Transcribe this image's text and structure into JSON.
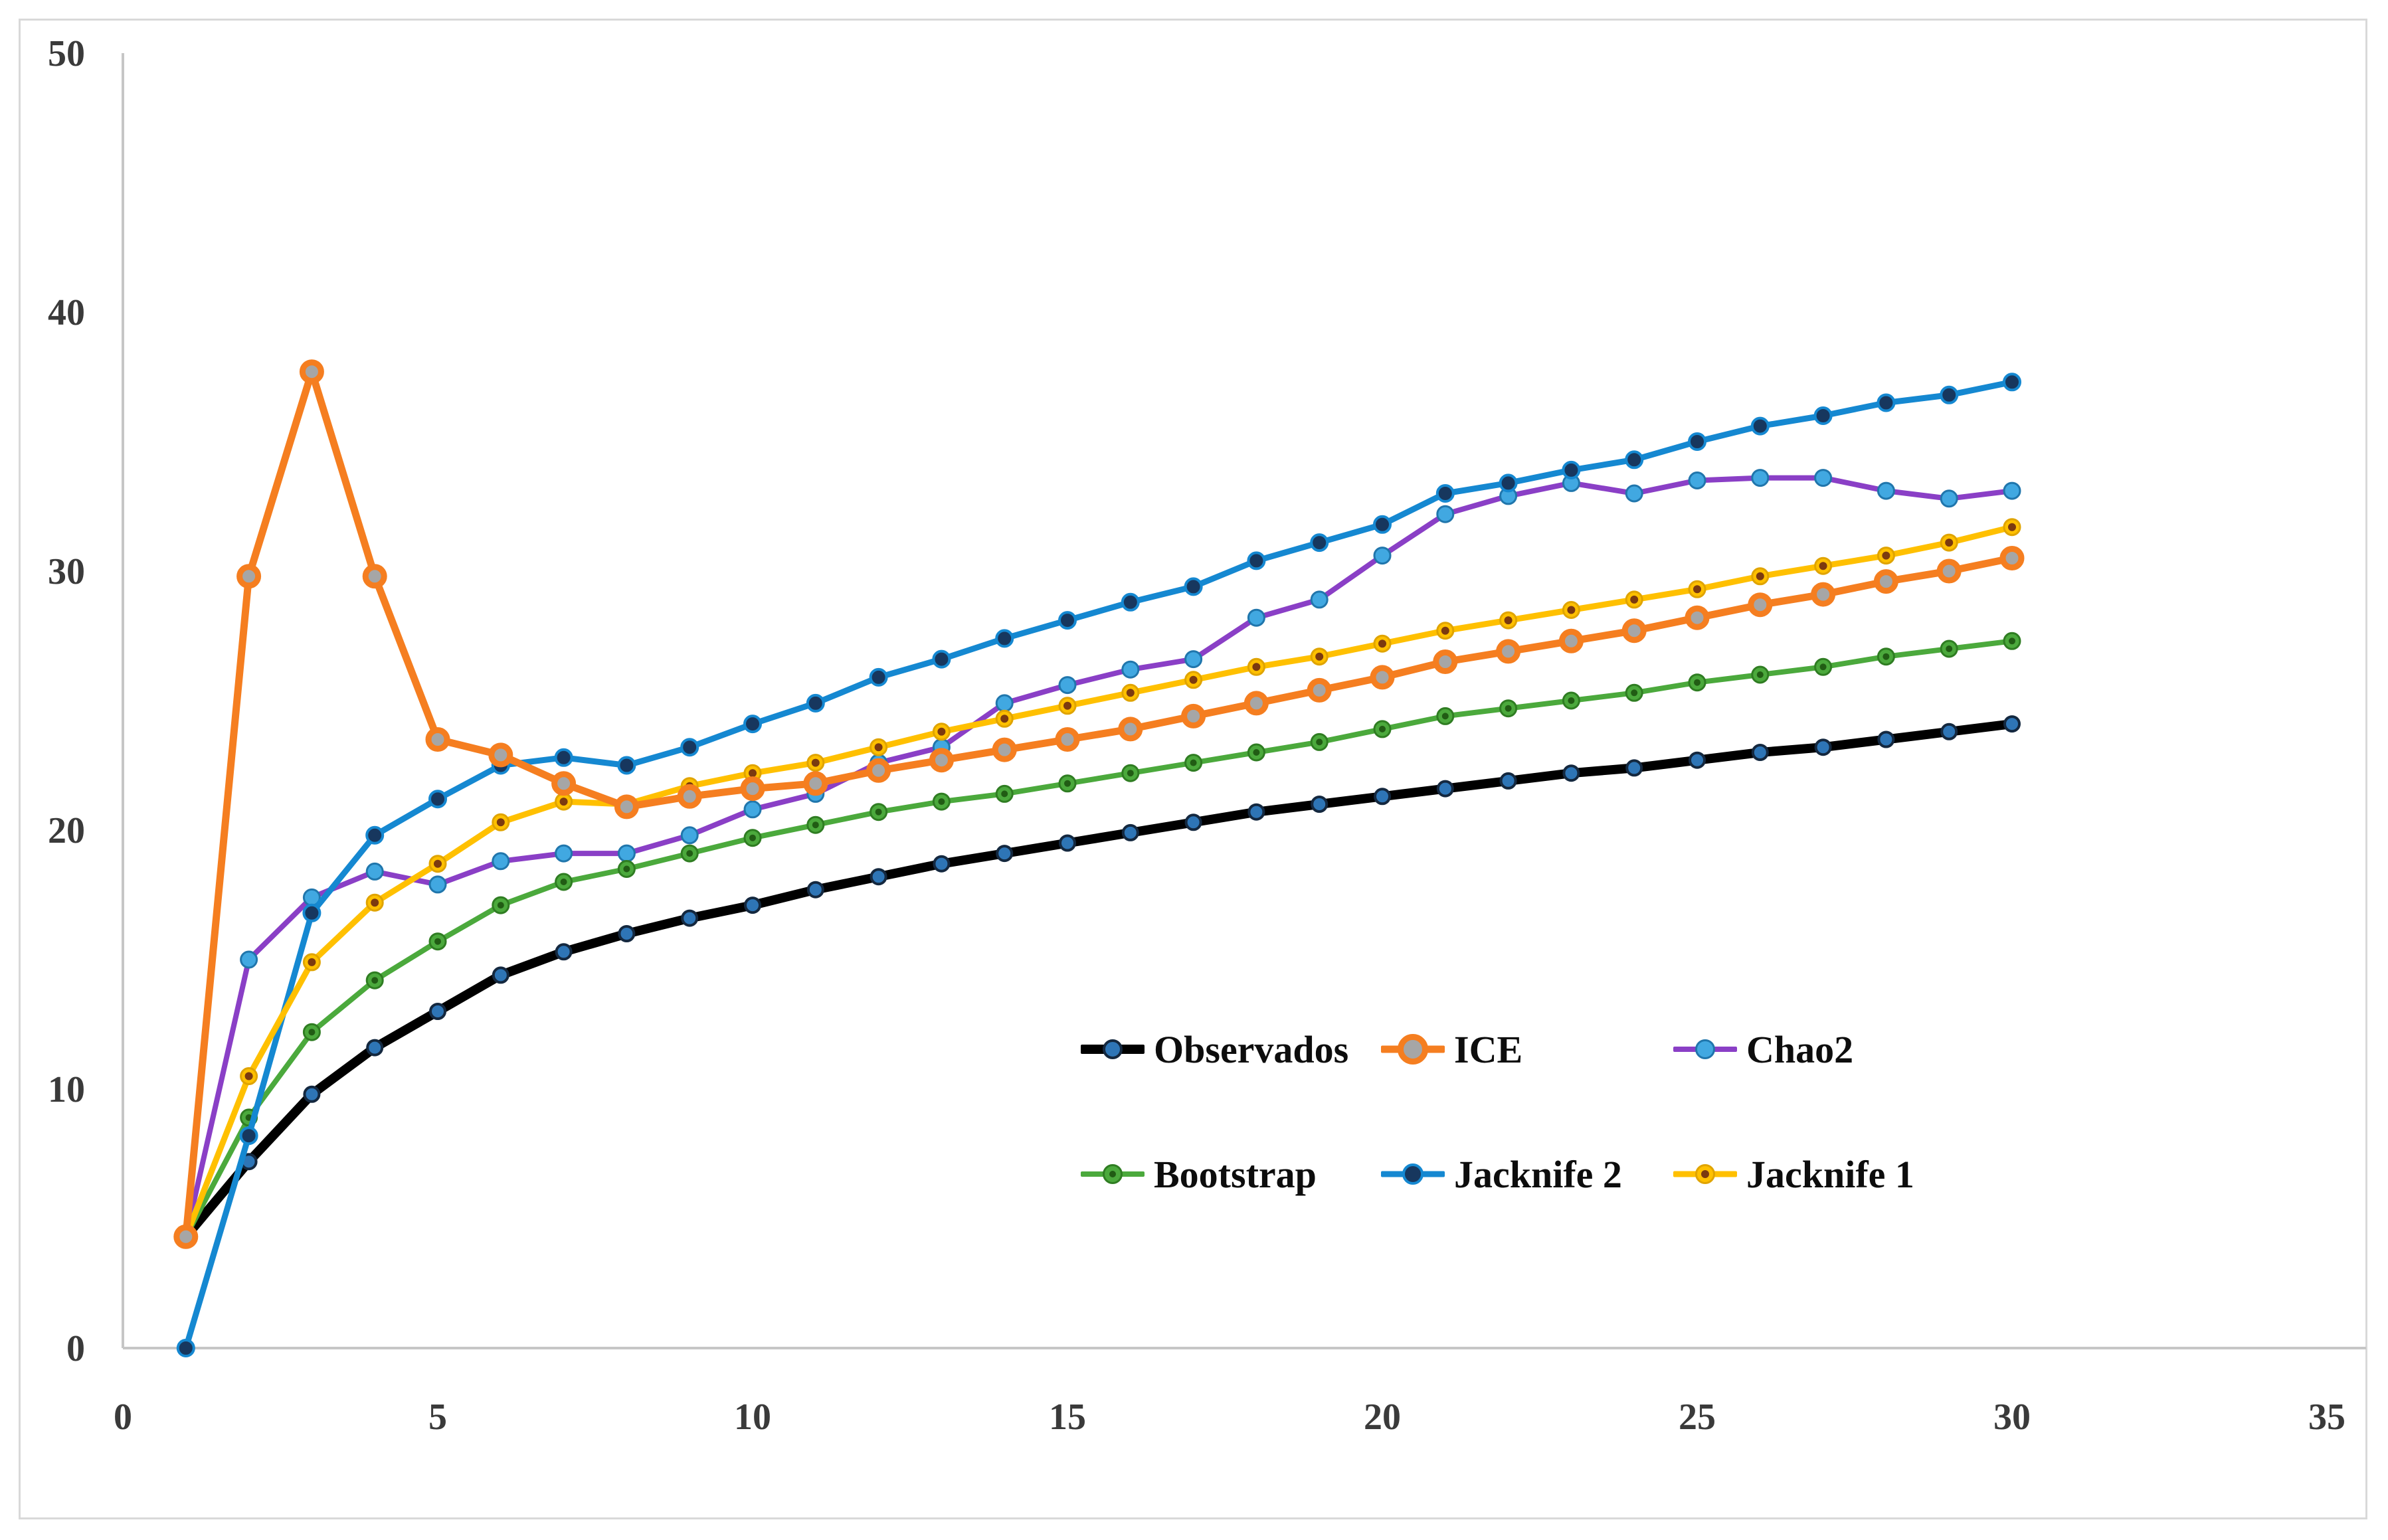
{
  "figure": {
    "background": "#ffffff",
    "frame_border_color": "#d9d9d9",
    "axis_line_color": "#c6c6c6",
    "tick_label_color": "#3a3a3a"
  },
  "chart_data": {
    "type": "line",
    "title": "",
    "xlabel": "",
    "ylabel": "",
    "xlim": [
      0,
      35
    ],
    "ylim": [
      0,
      50
    ],
    "x_ticks": [
      0,
      5,
      10,
      15,
      20,
      25,
      30,
      35
    ],
    "y_ticks": [
      0,
      10,
      20,
      30,
      40,
      50
    ],
    "grid": false,
    "legend_position": "inside-center-right, two rows of three",
    "x": [
      1,
      2,
      3,
      4,
      5,
      6,
      7,
      8,
      9,
      10,
      11,
      12,
      13,
      14,
      15,
      16,
      17,
      18,
      19,
      20,
      21,
      22,
      23,
      24,
      25,
      26,
      27,
      28,
      29,
      30
    ],
    "series": [
      {
        "name": "Observados",
        "line_color": "#000000",
        "line_width": 14,
        "marker": {
          "radius": 11,
          "fill": "#2e75b6",
          "stroke": "#14283f",
          "stroke_width": 4,
          "inner": null,
          "inner_radius": 0
        },
        "values": [
          4.3,
          7.2,
          9.8,
          11.6,
          13.0,
          14.4,
          15.3,
          16.0,
          16.6,
          17.1,
          17.7,
          18.2,
          18.7,
          19.1,
          19.5,
          19.9,
          20.3,
          20.7,
          21.0,
          21.3,
          21.6,
          21.9,
          22.2,
          22.4,
          22.7,
          23.0,
          23.2,
          23.5,
          23.8,
          24.1
        ]
      },
      {
        "name": "ICE",
        "line_color": "#f57e20",
        "line_width": 11,
        "marker": {
          "radius": 14,
          "fill": "#a6a6a6",
          "stroke": "#f57e20",
          "stroke_width": 9,
          "inner": null,
          "inner_radius": 0
        },
        "values": [
          4.3,
          29.8,
          37.7,
          29.8,
          23.5,
          22.9,
          21.8,
          20.9,
          21.3,
          21.6,
          21.8,
          22.3,
          22.7,
          23.1,
          23.5,
          23.9,
          24.4,
          24.9,
          25.4,
          25.9,
          26.5,
          26.9,
          27.3,
          27.7,
          28.2,
          28.7,
          29.1,
          29.6,
          30.0,
          30.5
        ]
      },
      {
        "name": "Chao2",
        "line_color": "#8a3fc6",
        "line_width": 8,
        "marker": {
          "radius": 12,
          "fill": "#41a8e1",
          "stroke": "#2076ac",
          "stroke_width": 3,
          "inner": null,
          "inner_radius": 0
        },
        "values": [
          4.3,
          15.0,
          17.4,
          18.4,
          17.9,
          18.8,
          19.1,
          19.1,
          19.8,
          20.8,
          21.4,
          22.6,
          23.2,
          24.9,
          25.6,
          26.2,
          26.6,
          28.2,
          28.9,
          30.6,
          32.2,
          32.9,
          33.4,
          33.0,
          33.5,
          33.6,
          33.6,
          33.1,
          32.8,
          33.1
        ]
      },
      {
        "name": "Bootstrap",
        "line_color": "#4ba93c",
        "line_width": 8,
        "marker": {
          "radius": 12,
          "fill": "#4ba93c",
          "stroke": "#2f7d22",
          "stroke_width": 3,
          "inner": "#215c14",
          "inner_radius": 5
        },
        "values": [
          4.3,
          8.9,
          12.2,
          14.2,
          15.7,
          17.1,
          18.0,
          18.5,
          19.1,
          19.7,
          20.2,
          20.7,
          21.1,
          21.4,
          21.8,
          22.2,
          22.6,
          23.0,
          23.4,
          23.9,
          24.4,
          24.7,
          25.0,
          25.3,
          25.7,
          26.0,
          26.3,
          26.7,
          27.0,
          27.3
        ]
      },
      {
        "name": "Jacknife 2",
        "line_color": "#1588d1",
        "line_width": 9,
        "marker": {
          "radius": 12,
          "fill": "#17375e",
          "stroke": "#1588d1",
          "stroke_width": 4,
          "inner": null,
          "inner_radius": 0
        },
        "values": [
          0.0,
          8.2,
          16.8,
          19.8,
          21.2,
          22.5,
          22.8,
          22.5,
          23.2,
          24.1,
          24.9,
          25.9,
          26.6,
          27.4,
          28.1,
          28.8,
          29.4,
          30.4,
          31.1,
          31.8,
          33.0,
          33.4,
          33.9,
          34.3,
          35.0,
          35.6,
          36.0,
          36.5,
          36.8,
          37.3
        ]
      },
      {
        "name": "Jacknife 1",
        "line_color": "#ffc000",
        "line_width": 9,
        "marker": {
          "radius": 12,
          "fill": "#ffc000",
          "stroke": "#e0a400",
          "stroke_width": 3,
          "inner": "#7b3a10",
          "inner_radius": 6
        },
        "values": [
          4.3,
          10.5,
          14.9,
          17.2,
          18.7,
          20.3,
          21.1,
          21.0,
          21.7,
          22.2,
          22.6,
          23.2,
          23.8,
          24.3,
          24.8,
          25.3,
          25.8,
          26.3,
          26.7,
          27.2,
          27.7,
          28.1,
          28.5,
          28.9,
          29.3,
          29.8,
          30.2,
          30.6,
          31.1,
          31.7
        ]
      }
    ]
  }
}
